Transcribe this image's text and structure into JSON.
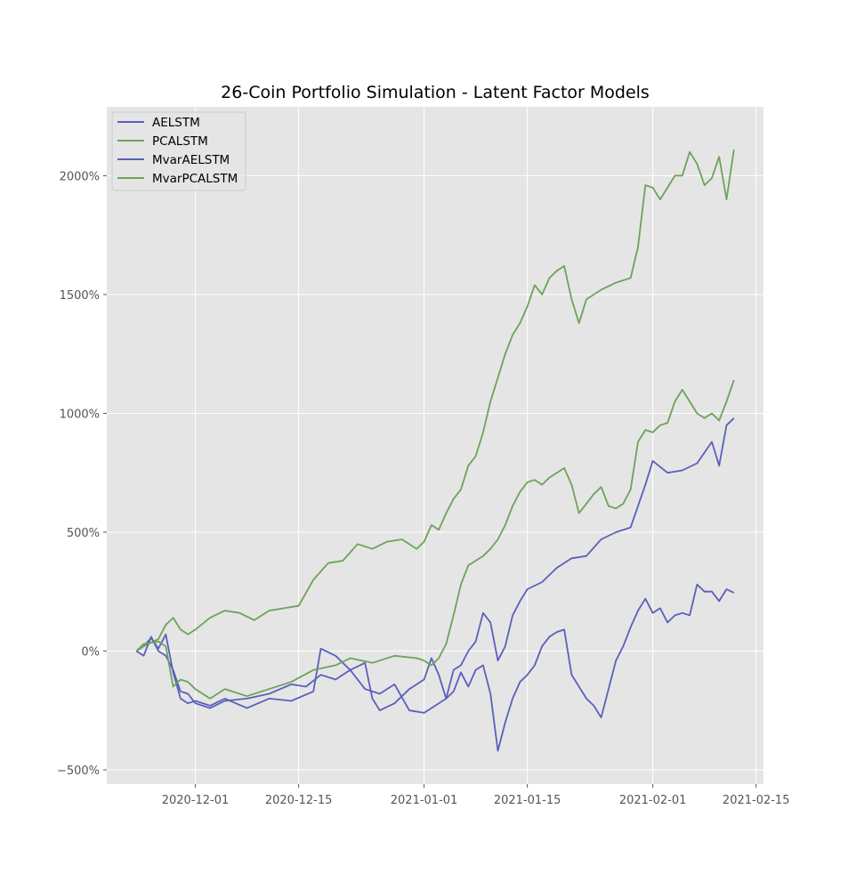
{
  "chart_data": {
    "type": "line",
    "title": "26-Coin Portfolio Simulation - Latent Factor Models",
    "xlabel": "",
    "ylabel": "",
    "x_ticks": [
      "2020-12-01",
      "2020-12-15",
      "2021-01-01",
      "2021-01-15",
      "2021-02-01",
      "2021-02-15"
    ],
    "y_ticks": [
      "−500%",
      "0%",
      "500%",
      "1000%",
      "1500%",
      "2000%"
    ],
    "y_tick_values": [
      -500,
      0,
      500,
      1000,
      1500,
      2000
    ],
    "xlim": [
      "2020-11-19",
      "2021-02-16"
    ],
    "ylim": [
      -560,
      2290
    ],
    "grid": true,
    "legend": "top-left",
    "colors": {
      "blue": "#5a60ba",
      "green": "#6ca35a",
      "background": "#e5e5e5",
      "grid": "#ffffff"
    },
    "series": [
      {
        "name": "AELSTM",
        "color": "#5a60ba",
        "points": [
          [
            "2020-11-23",
            0
          ],
          [
            "2020-11-24",
            20
          ],
          [
            "2020-11-25",
            55
          ],
          [
            "2020-11-26",
            10
          ],
          [
            "2020-11-27",
            70
          ],
          [
            "2020-11-28",
            -90
          ],
          [
            "2020-11-29",
            -200
          ],
          [
            "2020-11-30",
            -220
          ],
          [
            "2020-12-01",
            -210
          ],
          [
            "2020-12-03",
            -230
          ],
          [
            "2020-12-05",
            -200
          ],
          [
            "2020-12-08",
            -240
          ],
          [
            "2020-12-11",
            -200
          ],
          [
            "2020-12-14",
            -210
          ],
          [
            "2020-12-17",
            -170
          ],
          [
            "2020-12-18",
            10
          ],
          [
            "2020-12-20",
            -20
          ],
          [
            "2020-12-22",
            -80
          ],
          [
            "2020-12-24",
            -160
          ],
          [
            "2020-12-26",
            -180
          ],
          [
            "2020-12-28",
            -140
          ],
          [
            "2020-12-30",
            -250
          ],
          [
            "2021-01-01",
            -260
          ],
          [
            "2021-01-02",
            -240
          ],
          [
            "2021-01-04",
            -200
          ],
          [
            "2021-01-05",
            -80
          ],
          [
            "2021-01-06",
            -60
          ],
          [
            "2021-01-07",
            0
          ],
          [
            "2021-01-08",
            40
          ],
          [
            "2021-01-09",
            160
          ],
          [
            "2021-01-10",
            120
          ],
          [
            "2021-01-11",
            -40
          ],
          [
            "2021-01-12",
            20
          ],
          [
            "2021-01-13",
            150
          ],
          [
            "2021-01-14",
            210
          ],
          [
            "2021-01-15",
            260
          ],
          [
            "2021-01-17",
            290
          ],
          [
            "2021-01-19",
            350
          ],
          [
            "2021-01-21",
            390
          ],
          [
            "2021-01-23",
            400
          ],
          [
            "2021-01-25",
            470
          ],
          [
            "2021-01-27",
            500
          ],
          [
            "2021-01-29",
            520
          ],
          [
            "2021-01-30",
            610
          ],
          [
            "2021-01-31",
            700
          ],
          [
            "2021-02-01",
            800
          ],
          [
            "2021-02-03",
            750
          ],
          [
            "2021-02-05",
            760
          ],
          [
            "2021-02-07",
            790
          ],
          [
            "2021-02-09",
            880
          ],
          [
            "2021-02-10",
            780
          ],
          [
            "2021-02-11",
            950
          ],
          [
            "2021-02-12",
            980
          ]
        ]
      },
      {
        "name": "PCALSTM",
        "color": "#6ca35a",
        "points": [
          [
            "2020-11-23",
            0
          ],
          [
            "2020-11-24",
            20
          ],
          [
            "2020-11-26",
            50
          ],
          [
            "2020-11-27",
            110
          ],
          [
            "2020-11-28",
            140
          ],
          [
            "2020-11-29",
            90
          ],
          [
            "2020-11-30",
            70
          ],
          [
            "2020-12-01",
            90
          ],
          [
            "2020-12-03",
            140
          ],
          [
            "2020-12-05",
            170
          ],
          [
            "2020-12-07",
            160
          ],
          [
            "2020-12-09",
            130
          ],
          [
            "2020-12-11",
            170
          ],
          [
            "2020-12-13",
            180
          ],
          [
            "2020-12-15",
            190
          ],
          [
            "2020-12-17",
            300
          ],
          [
            "2020-12-19",
            370
          ],
          [
            "2020-12-21",
            380
          ],
          [
            "2020-12-23",
            450
          ],
          [
            "2020-12-25",
            430
          ],
          [
            "2020-12-27",
            460
          ],
          [
            "2020-12-29",
            470
          ],
          [
            "2020-12-31",
            430
          ],
          [
            "2021-01-01",
            460
          ],
          [
            "2021-01-02",
            530
          ],
          [
            "2021-01-03",
            510
          ],
          [
            "2021-01-04",
            580
          ],
          [
            "2021-01-05",
            640
          ],
          [
            "2021-01-06",
            680
          ],
          [
            "2021-01-07",
            780
          ],
          [
            "2021-01-08",
            820
          ],
          [
            "2021-01-09",
            920
          ],
          [
            "2021-01-10",
            1050
          ],
          [
            "2021-01-11",
            1150
          ],
          [
            "2021-01-12",
            1250
          ],
          [
            "2021-01-13",
            1330
          ],
          [
            "2021-01-14",
            1380
          ],
          [
            "2021-01-15",
            1450
          ],
          [
            "2021-01-16",
            1540
          ],
          [
            "2021-01-17",
            1500
          ],
          [
            "2021-01-18",
            1570
          ],
          [
            "2021-01-19",
            1600
          ],
          [
            "2021-01-20",
            1620
          ],
          [
            "2021-01-21",
            1480
          ],
          [
            "2021-01-22",
            1380
          ],
          [
            "2021-01-23",
            1480
          ],
          [
            "2021-01-25",
            1520
          ],
          [
            "2021-01-27",
            1550
          ],
          [
            "2021-01-29",
            1570
          ],
          [
            "2021-01-30",
            1700
          ],
          [
            "2021-01-31",
            1960
          ],
          [
            "2021-02-01",
            1950
          ],
          [
            "2021-02-02",
            1900
          ],
          [
            "2021-02-04",
            2000
          ],
          [
            "2021-02-05",
            2000
          ],
          [
            "2021-02-06",
            2100
          ],
          [
            "2021-02-07",
            2050
          ],
          [
            "2021-02-08",
            1960
          ],
          [
            "2021-02-09",
            1990
          ],
          [
            "2021-02-10",
            2080
          ],
          [
            "2021-02-11",
            1900
          ],
          [
            "2021-02-12",
            2110
          ]
        ]
      },
      {
        "name": "MvarAELSTM",
        "color": "#5a60ba",
        "points": [
          [
            "2020-11-23",
            0
          ],
          [
            "2020-11-24",
            -20
          ],
          [
            "2020-11-25",
            60
          ],
          [
            "2020-11-26",
            0
          ],
          [
            "2020-11-27",
            -20
          ],
          [
            "2020-11-28",
            -80
          ],
          [
            "2020-11-29",
            -170
          ],
          [
            "2020-11-30",
            -180
          ],
          [
            "2020-12-01",
            -220
          ],
          [
            "2020-12-03",
            -240
          ],
          [
            "2020-12-05",
            -210
          ],
          [
            "2020-12-08",
            -200
          ],
          [
            "2020-12-11",
            -180
          ],
          [
            "2020-12-14",
            -140
          ],
          [
            "2020-12-16",
            -150
          ],
          [
            "2020-12-18",
            -100
          ],
          [
            "2020-12-20",
            -120
          ],
          [
            "2020-12-22",
            -80
          ],
          [
            "2020-12-24",
            -50
          ],
          [
            "2020-12-25",
            -200
          ],
          [
            "2020-12-26",
            -250
          ],
          [
            "2020-12-28",
            -220
          ],
          [
            "2020-12-30",
            -160
          ],
          [
            "2021-01-01",
            -120
          ],
          [
            "2021-01-02",
            -30
          ],
          [
            "2021-01-03",
            -100
          ],
          [
            "2021-01-04",
            -200
          ],
          [
            "2021-01-05",
            -170
          ],
          [
            "2021-01-06",
            -90
          ],
          [
            "2021-01-07",
            -150
          ],
          [
            "2021-01-08",
            -80
          ],
          [
            "2021-01-09",
            -60
          ],
          [
            "2021-01-10",
            -180
          ],
          [
            "2021-01-11",
            -420
          ],
          [
            "2021-01-12",
            -300
          ],
          [
            "2021-01-13",
            -200
          ],
          [
            "2021-01-14",
            -130
          ],
          [
            "2021-01-15",
            -100
          ],
          [
            "2021-01-16",
            -60
          ],
          [
            "2021-01-17",
            20
          ],
          [
            "2021-01-18",
            60
          ],
          [
            "2021-01-19",
            80
          ],
          [
            "2021-01-20",
            90
          ],
          [
            "2021-01-21",
            -100
          ],
          [
            "2021-01-22",
            -150
          ],
          [
            "2021-01-23",
            -200
          ],
          [
            "2021-01-24",
            -230
          ],
          [
            "2021-01-25",
            -280
          ],
          [
            "2021-01-26",
            -160
          ],
          [
            "2021-01-27",
            -40
          ],
          [
            "2021-01-28",
            20
          ],
          [
            "2021-01-29",
            100
          ],
          [
            "2021-01-30",
            170
          ],
          [
            "2021-01-31",
            220
          ],
          [
            "2021-02-01",
            160
          ],
          [
            "2021-02-02",
            180
          ],
          [
            "2021-02-03",
            120
          ],
          [
            "2021-02-04",
            150
          ],
          [
            "2021-02-05",
            160
          ],
          [
            "2021-02-06",
            150
          ],
          [
            "2021-02-07",
            280
          ],
          [
            "2021-02-08",
            250
          ],
          [
            "2021-02-09",
            250
          ],
          [
            "2021-02-10",
            210
          ],
          [
            "2021-02-11",
            260
          ],
          [
            "2021-02-12",
            245
          ]
        ]
      },
      {
        "name": "MvarPCALSTM",
        "color": "#6ca35a",
        "points": [
          [
            "2020-11-23",
            0
          ],
          [
            "2020-11-24",
            30
          ],
          [
            "2020-11-26",
            40
          ],
          [
            "2020-11-27",
            20
          ],
          [
            "2020-11-28",
            -150
          ],
          [
            "2020-11-29",
            -120
          ],
          [
            "2020-11-30",
            -130
          ],
          [
            "2020-12-01",
            -160
          ],
          [
            "2020-12-03",
            -200
          ],
          [
            "2020-12-05",
            -160
          ],
          [
            "2020-12-08",
            -190
          ],
          [
            "2020-12-11",
            -160
          ],
          [
            "2020-12-14",
            -130
          ],
          [
            "2020-12-17",
            -80
          ],
          [
            "2020-12-20",
            -60
          ],
          [
            "2020-12-22",
            -30
          ],
          [
            "2020-12-25",
            -50
          ],
          [
            "2020-12-28",
            -20
          ],
          [
            "2020-12-31",
            -30
          ],
          [
            "2021-01-01",
            -40
          ],
          [
            "2021-01-02",
            -60
          ],
          [
            "2021-01-03",
            -30
          ],
          [
            "2021-01-04",
            30
          ],
          [
            "2021-01-05",
            150
          ],
          [
            "2021-01-06",
            280
          ],
          [
            "2021-01-07",
            360
          ],
          [
            "2021-01-08",
            380
          ],
          [
            "2021-01-09",
            400
          ],
          [
            "2021-01-10",
            430
          ],
          [
            "2021-01-11",
            470
          ],
          [
            "2021-01-12",
            530
          ],
          [
            "2021-01-13",
            610
          ],
          [
            "2021-01-14",
            670
          ],
          [
            "2021-01-15",
            710
          ],
          [
            "2021-01-16",
            720
          ],
          [
            "2021-01-17",
            700
          ],
          [
            "2021-01-18",
            730
          ],
          [
            "2021-01-19",
            750
          ],
          [
            "2021-01-20",
            770
          ],
          [
            "2021-01-21",
            700
          ],
          [
            "2021-01-22",
            580
          ],
          [
            "2021-01-23",
            620
          ],
          [
            "2021-01-24",
            660
          ],
          [
            "2021-01-25",
            690
          ],
          [
            "2021-01-26",
            610
          ],
          [
            "2021-01-27",
            600
          ],
          [
            "2021-01-28",
            620
          ],
          [
            "2021-01-29",
            680
          ],
          [
            "2021-01-30",
            880
          ],
          [
            "2021-01-31",
            930
          ],
          [
            "2021-02-01",
            920
          ],
          [
            "2021-02-02",
            950
          ],
          [
            "2021-02-03",
            960
          ],
          [
            "2021-02-04",
            1050
          ],
          [
            "2021-02-05",
            1100
          ],
          [
            "2021-02-06",
            1050
          ],
          [
            "2021-02-07",
            1000
          ],
          [
            "2021-02-08",
            980
          ],
          [
            "2021-02-09",
            1000
          ],
          [
            "2021-02-10",
            970
          ],
          [
            "2021-02-11",
            1050
          ],
          [
            "2021-02-12",
            1140
          ]
        ]
      }
    ]
  }
}
